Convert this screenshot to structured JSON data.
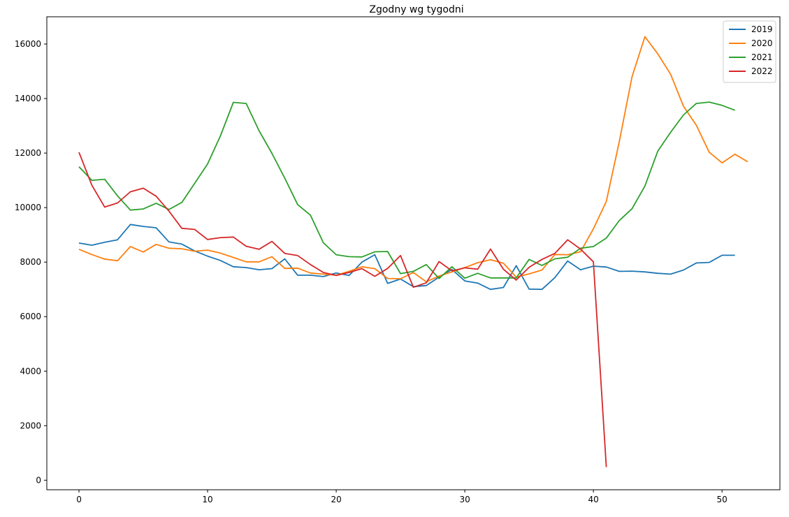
{
  "chart_data": {
    "type": "line",
    "title": "Zgodny wg tygodni",
    "xlabel": "",
    "ylabel": "",
    "xlim": [
      -2.5,
      54.5
    ],
    "ylim": [
      -350,
      17000
    ],
    "xticks": [
      0,
      10,
      20,
      30,
      40,
      50
    ],
    "yticks": [
      0,
      2000,
      4000,
      6000,
      8000,
      10000,
      12000,
      14000,
      16000
    ],
    "grid": false,
    "legend": "top-right",
    "series": [
      {
        "name": "2019",
        "color": "#1f77b4",
        "x": [
          0,
          1,
          2,
          3,
          4,
          5,
          6,
          7,
          8,
          9,
          10,
          11,
          12,
          13,
          14,
          15,
          16,
          17,
          18,
          19,
          20,
          21,
          22,
          23,
          24,
          25,
          26,
          27,
          28,
          29,
          30,
          31,
          32,
          33,
          34,
          35,
          36,
          37,
          38,
          39,
          40,
          41,
          42,
          43,
          44,
          45,
          46,
          47,
          48,
          49,
          50,
          51
        ],
        "values": [
          8700,
          8620,
          8730,
          8820,
          9380,
          9310,
          9260,
          8740,
          8660,
          8410,
          8220,
          8060,
          7830,
          7800,
          7720,
          7760,
          8120,
          7520,
          7520,
          7470,
          7600,
          7510,
          8000,
          8270,
          7220,
          7380,
          7100,
          7140,
          7450,
          7730,
          7310,
          7230,
          7000,
          7070,
          7870,
          7010,
          7000,
          7430,
          8040,
          7720,
          7850,
          7820,
          7660,
          7670,
          7640,
          7590,
          7560,
          7710,
          7970,
          7990,
          8250,
          8250
        ]
      },
      {
        "name": "2020",
        "color": "#ff7f0e",
        "x": [
          0,
          1,
          2,
          3,
          4,
          5,
          6,
          7,
          8,
          9,
          10,
          11,
          12,
          13,
          14,
          15,
          16,
          17,
          18,
          19,
          20,
          21,
          22,
          23,
          24,
          25,
          26,
          27,
          28,
          29,
          30,
          31,
          32,
          33,
          34,
          35,
          36,
          37,
          38,
          39,
          40,
          41,
          42,
          43,
          44,
          45,
          46,
          47,
          48,
          49,
          50,
          51,
          52
        ],
        "values": [
          8470,
          8280,
          8110,
          8050,
          8570,
          8370,
          8650,
          8510,
          8490,
          8400,
          8440,
          8330,
          8170,
          8010,
          8010,
          8200,
          7770,
          7780,
          7600,
          7560,
          7520,
          7660,
          7830,
          7760,
          7400,
          7390,
          7620,
          7280,
          7490,
          7640,
          7800,
          7980,
          8090,
          7960,
          7450,
          7570,
          7710,
          8280,
          8270,
          8380,
          9220,
          10230,
          12400,
          14800,
          16270,
          15640,
          14890,
          13720,
          13020,
          12030,
          11640,
          11960,
          11680
        ]
      },
      {
        "name": "2021",
        "color": "#2ca02c",
        "x": [
          0,
          1,
          2,
          3,
          4,
          5,
          6,
          7,
          8,
          9,
          10,
          11,
          12,
          13,
          14,
          15,
          16,
          17,
          18,
          19,
          20,
          21,
          22,
          23,
          24,
          25,
          26,
          27,
          28,
          29,
          30,
          31,
          32,
          33,
          34,
          35,
          36,
          37,
          38,
          39,
          40,
          41,
          42,
          43,
          44,
          45,
          46,
          47,
          48,
          49,
          50,
          51
        ],
        "values": [
          11500,
          11000,
          11040,
          10430,
          9910,
          9950,
          10160,
          9930,
          10190,
          10890,
          11600,
          12630,
          13860,
          13820,
          12820,
          11990,
          11080,
          10110,
          9720,
          8710,
          8270,
          8200,
          8190,
          8380,
          8390,
          7580,
          7660,
          7910,
          7400,
          7830,
          7410,
          7590,
          7420,
          7420,
          7420,
          8100,
          7880,
          8120,
          8180,
          8510,
          8570,
          8880,
          9520,
          9960,
          10790,
          12070,
          12760,
          13400,
          13820,
          13870,
          13750,
          13570
        ]
      },
      {
        "name": "2022",
        "color": "#d62728",
        "x": [
          0,
          1,
          2,
          3,
          4,
          5,
          6,
          7,
          8,
          9,
          10,
          11,
          12,
          13,
          14,
          15,
          16,
          17,
          18,
          19,
          20,
          21,
          22,
          23,
          24,
          25,
          26,
          27,
          28,
          29,
          30,
          31,
          32,
          33,
          34,
          35,
          36,
          37,
          38,
          39,
          40,
          41
        ],
        "values": [
          12030,
          10820,
          10020,
          10170,
          10580,
          10710,
          10420,
          9870,
          9240,
          9200,
          8830,
          8900,
          8920,
          8580,
          8470,
          8760,
          8320,
          8240,
          7910,
          7620,
          7510,
          7620,
          7760,
          7480,
          7770,
          8240,
          7080,
          7240,
          8020,
          7680,
          7790,
          7740,
          8480,
          7740,
          7340,
          7810,
          8100,
          8320,
          8820,
          8480,
          8010,
          480
        ]
      }
    ]
  }
}
